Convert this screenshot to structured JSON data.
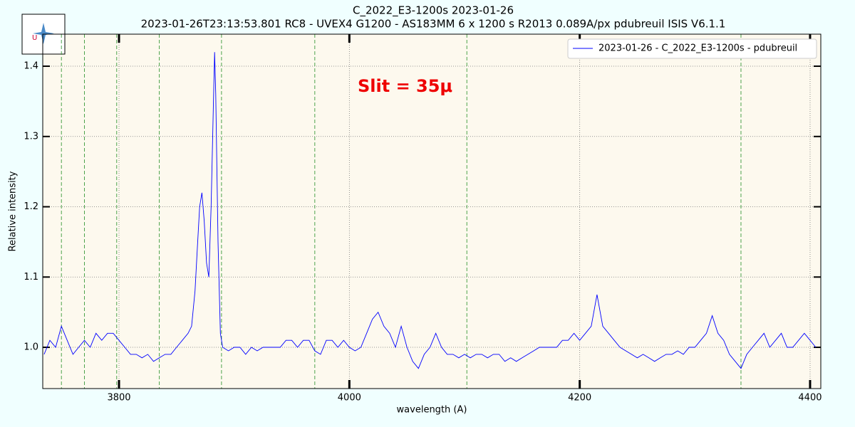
{
  "chart_data": {
    "type": "line",
    "title": "C_2022_E3-1200s 2023-01-26",
    "subtitle": "2023-01-26T23:13:53.801 RC8 - UVEX4 G1200 - AS183MM 6 x 1200 s   R2013  0.089A/px  pdubreuil ISIS V6.1.1",
    "xlabel": "wavelength (A)",
    "ylabel": "Relative intensity",
    "annotation": "Slit = 35μ",
    "xlim": [
      3733.8,
      4409.3
    ],
    "ylim": [
      0.9413,
      1.4456
    ],
    "xticks": [
      3800,
      4000,
      4200,
      4400
    ],
    "yticks": [
      {
        "value": 1.0,
        "label": "1.0"
      },
      1.1,
      1.2,
      1.3,
      1.4
    ],
    "grid": true,
    "legend": "upper right",
    "reference_lines": [
      3750,
      3770,
      3798,
      3835,
      3889,
      3970,
      4102,
      4340
    ],
    "reference_color": "#3a9a3a",
    "x": [
      3735,
      3740,
      3745,
      3750,
      3755,
      3760,
      3765,
      3770,
      3775,
      3780,
      3785,
      3790,
      3795,
      3800,
      3805,
      3810,
      3815,
      3820,
      3825,
      3830,
      3835,
      3840,
      3845,
      3850,
      3855,
      3860,
      3863,
      3866,
      3868,
      3870,
      3872,
      3874,
      3876,
      3878,
      3880,
      3882,
      3883,
      3884,
      3886,
      3888,
      3890,
      3895,
      3900,
      3905,
      3910,
      3915,
      3920,
      3925,
      3930,
      3935,
      3940,
      3945,
      3950,
      3955,
      3960,
      3965,
      3970,
      3975,
      3980,
      3985,
      3990,
      3995,
      4000,
      4005,
      4010,
      4015,
      4020,
      4025,
      4030,
      4035,
      4040,
      4045,
      4050,
      4055,
      4060,
      4065,
      4070,
      4075,
      4080,
      4085,
      4090,
      4095,
      4100,
      4105,
      4110,
      4115,
      4120,
      4125,
      4130,
      4135,
      4140,
      4145,
      4150,
      4155,
      4160,
      4165,
      4170,
      4175,
      4180,
      4185,
      4190,
      4195,
      4200,
      4205,
      4210,
      4215,
      4220,
      4225,
      4230,
      4235,
      4240,
      4245,
      4250,
      4255,
      4260,
      4265,
      4270,
      4275,
      4280,
      4285,
      4290,
      4295,
      4300,
      4305,
      4310,
      4315,
      4320,
      4325,
      4330,
      4335,
      4340,
      4345,
      4350,
      4355,
      4360,
      4365,
      4370,
      4375,
      4380,
      4385,
      4390,
      4395,
      4400,
      4405
    ],
    "series": [
      {
        "name": "2023-01-26 - C_2022_E3-1200s - pdubreuil",
        "color": "#0000ff",
        "values": [
          0.99,
          1.01,
          1.0,
          1.03,
          1.01,
          0.99,
          1.0,
          1.01,
          1.0,
          1.02,
          1.01,
          1.02,
          1.02,
          1.01,
          1.0,
          0.99,
          0.99,
          0.985,
          0.99,
          0.98,
          0.985,
          0.99,
          0.99,
          1.0,
          1.01,
          1.02,
          1.03,
          1.08,
          1.14,
          1.2,
          1.22,
          1.18,
          1.12,
          1.1,
          1.2,
          1.35,
          1.42,
          1.36,
          1.15,
          1.02,
          1.0,
          0.995,
          1.0,
          1.0,
          0.99,
          1.0,
          0.995,
          1.0,
          1.0,
          1.0,
          1.0,
          1.01,
          1.01,
          1.0,
          1.01,
          1.01,
          0.995,
          0.99,
          1.01,
          1.01,
          1.0,
          1.01,
          1.0,
          0.995,
          1.0,
          1.02,
          1.04,
          1.05,
          1.03,
          1.02,
          1.0,
          1.03,
          1.0,
          0.98,
          0.97,
          0.99,
          1.0,
          1.02,
          1.0,
          0.99,
          0.99,
          0.985,
          0.99,
          0.985,
          0.99,
          0.99,
          0.985,
          0.99,
          0.99,
          0.98,
          0.985,
          0.98,
          0.985,
          0.99,
          0.995,
          1.0,
          1.0,
          1.0,
          1.0,
          1.01,
          1.01,
          1.02,
          1.01,
          1.02,
          1.03,
          1.075,
          1.03,
          1.02,
          1.01,
          1.0,
          0.995,
          0.99,
          0.985,
          0.99,
          0.985,
          0.98,
          0.985,
          0.99,
          0.99,
          0.995,
          0.99,
          1.0,
          1.0,
          1.01,
          1.02,
          1.045,
          1.02,
          1.01,
          0.99,
          0.98,
          0.97,
          0.99,
          1.0,
          1.01,
          1.02,
          1.0,
          1.01,
          1.02,
          1.0,
          1.0,
          1.01,
          1.02,
          1.01,
          1.0
        ]
      }
    ]
  }
}
